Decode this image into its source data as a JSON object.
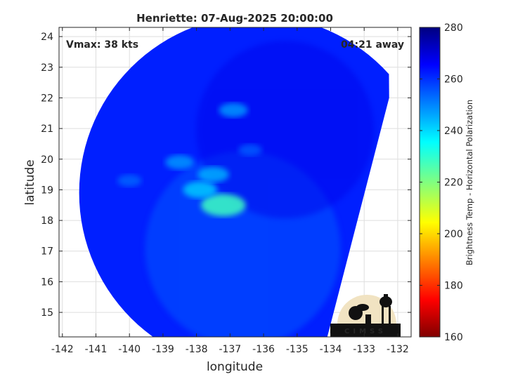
{
  "chart_data": {
    "type": "heatmap",
    "title": "Henriette: 07-Aug-2025 20:00:00",
    "xlabel": "longitude",
    "ylabel": "latitude",
    "xlim": [
      -142.1,
      -131.6
    ],
    "ylim": [
      14.2,
      24.3
    ],
    "x_ticks": [
      -142,
      -141,
      -140,
      -139,
      -138,
      -137,
      -136,
      -135,
      -134,
      -133,
      -132
    ],
    "y_ticks": [
      15,
      16,
      17,
      18,
      19,
      20,
      21,
      22,
      23,
      24
    ],
    "grid": true,
    "annotations": {
      "vmax": "Vmax: 38 kts",
      "time_away": "04:21 away"
    },
    "colorbar": {
      "label": "Brightness Temp - Horizontal Polarization",
      "range": [
        160,
        280
      ],
      "ticks": [
        160,
        180,
        200,
        220,
        240,
        260,
        280
      ],
      "colormap": "jet"
    },
    "storm_center": {
      "lon": -137.2,
      "lat": 18.5
    },
    "swath_center": {
      "lon": -136.2,
      "lat": 18.9
    },
    "swath_radius_deg": 5.3,
    "swath_edge_lon": -134.1,
    "background_tb": 262,
    "warm_features": [
      {
        "lon": -137.2,
        "lat": 18.5,
        "tb": 228
      },
      {
        "lon": -137.9,
        "lat": 19.0,
        "tb": 242
      },
      {
        "lon": -137.5,
        "lat": 19.5,
        "tb": 245
      },
      {
        "lon": -138.5,
        "lat": 19.9,
        "tb": 248
      },
      {
        "lon": -136.9,
        "lat": 21.6,
        "tb": 248
      },
      {
        "lon": -140.0,
        "lat": 19.3,
        "tb": 254
      },
      {
        "lon": -136.4,
        "lat": 20.3,
        "tb": 255
      }
    ]
  },
  "logo": {
    "text": "CIMSS"
  }
}
